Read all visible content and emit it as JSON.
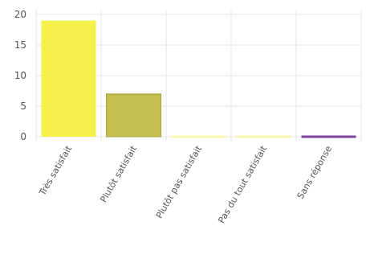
{
  "chart_data": {
    "type": "bar",
    "title": "",
    "xlabel": "",
    "ylabel": "",
    "categories": [
      "Très satisfait",
      "Plutôt satisfait",
      "Plutôt pas satisfait",
      "Pas du tout satisfait",
      "Sans réponse"
    ],
    "values": [
      19,
      7,
      0.2,
      0.1,
      0
    ],
    "colors": [
      "#f5f04a",
      "#c4bf4c",
      "#fbf7b0",
      "#f8f4a8",
      "#7b3fa0"
    ],
    "y_ticks": [
      0,
      5,
      10,
      15,
      20
    ],
    "ylim": [
      0,
      20
    ],
    "grid": true
  }
}
